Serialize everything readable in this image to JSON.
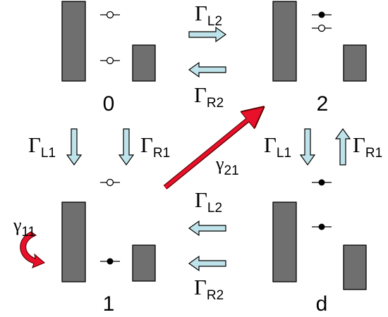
{
  "states": {
    "s0": "0",
    "s1": "1",
    "s2": "2",
    "sd": "d"
  },
  "rates": {
    "gamma_symbol": "Γ",
    "L1": "L1",
    "L2": "L2",
    "R1": "R1",
    "R2": "R2"
  },
  "relaxation": {
    "symbol": "γ",
    "g21": "21",
    "g11": "11"
  },
  "colors": {
    "barrier": "#6f6f6f",
    "transport_arrow": "#bfe3ea",
    "relaxation_arrow": "#e8102a"
  }
}
